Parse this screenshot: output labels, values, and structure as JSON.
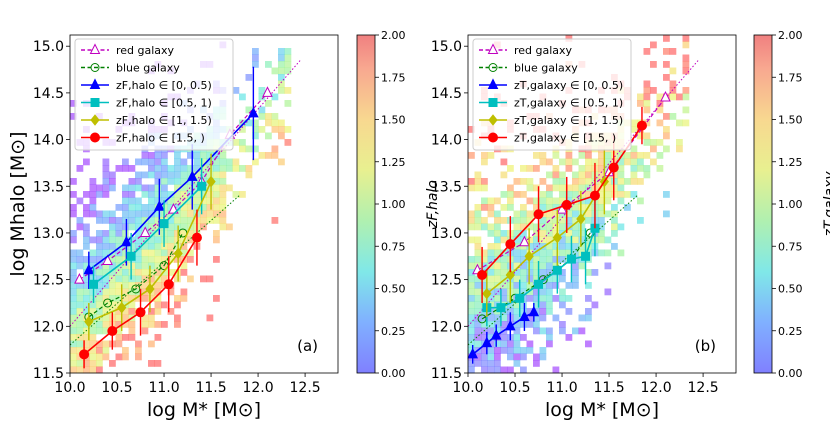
{
  "figure": {
    "colorbar": {
      "range": [
        0.0,
        2.0
      ],
      "tick_labels": [
        "0.00",
        "0.25",
        "0.50",
        "0.75",
        "1.00",
        "1.25",
        "1.50",
        "1.75",
        "2.00"
      ],
      "tick_values": [
        0.0,
        0.25,
        0.5,
        0.75,
        1.0,
        1.25,
        1.5,
        1.75,
        2.0
      ],
      "colormap": "rainbow (alpha 0.45)"
    },
    "colors": {
      "red_galaxy": "#c000c0",
      "blue_galaxy": "#008000",
      "bin1": "#0000ff",
      "bin2": "#00bfbf",
      "bin3": "#bfbf00",
      "bin4": "#ff0000"
    }
  },
  "chart_data": [
    {
      "type": "scatter",
      "panel_label": "(a)",
      "xlabel": "log M* [M⊙]",
      "ylabel": "log Mhalo [M⊙]",
      "colorbar_label": "zF,halo",
      "xlim": [
        10.0,
        12.85
      ],
      "ylim": [
        11.5,
        15.12
      ],
      "xticks": [
        10.0,
        10.5,
        11.0,
        11.5,
        12.0,
        12.5
      ],
      "xtick_labels": [
        "10.0",
        "10.5",
        "11.0",
        "11.5",
        "12.0",
        "12.5"
      ],
      "yticks": [
        11.5,
        12.0,
        12.5,
        13.0,
        13.5,
        14.0,
        14.5,
        15.0
      ],
      "ytick_labels": [
        "11.5",
        "12.0",
        "12.5",
        "13.0",
        "13.5",
        "14.0",
        "14.5",
        "15.0"
      ],
      "legend": {
        "location": "top-left",
        "entries": [
          {
            "label": "red galaxy",
            "series": "red"
          },
          {
            "label": "blue galaxy",
            "series": "blue"
          },
          {
            "label": "zF,halo ∈ [0, 0.5)",
            "series": "bin1"
          },
          {
            "label": "zF,halo ∈ [0.5, 1)",
            "series": "bin2"
          },
          {
            "label": "zF,halo ∈ [1, 1.5)",
            "series": "bin3"
          },
          {
            "label": "zF,halo ∈ [1.5, )",
            "series": "bin4"
          }
        ]
      },
      "fit_lines": {
        "red": {
          "x": [
            10.0,
            12.45
          ],
          "y": [
            12.0,
            14.85
          ]
        },
        "blue": {
          "x": [
            10.0,
            11.8
          ],
          "y": [
            11.8,
            13.4
          ]
        }
      },
      "series": [
        {
          "name": "red galaxy",
          "key": "red",
          "marker": "triangle-open",
          "x": [
            10.1,
            10.4,
            10.8,
            11.1,
            11.4,
            11.7,
            12.1
          ],
          "y": [
            12.5,
            12.7,
            13.0,
            13.25,
            13.55,
            14.05,
            14.5
          ],
          "err": [
            0,
            0,
            0,
            0,
            0,
            0,
            0
          ]
        },
        {
          "name": "blue galaxy",
          "key": "blue",
          "marker": "circle-open",
          "x": [
            10.2,
            10.4,
            10.7,
            11.0,
            11.2
          ],
          "y": [
            12.1,
            12.25,
            12.4,
            12.65,
            13.0
          ],
          "err": [
            0,
            0,
            0,
            0,
            0
          ]
        },
        {
          "name": "zF,halo ∈ [0, 0.5)",
          "key": "bin1",
          "marker": "triangle",
          "x": [
            10.2,
            10.6,
            10.95,
            11.3,
            11.95
          ],
          "y": [
            12.6,
            12.9,
            13.28,
            13.6,
            14.28
          ],
          "err": [
            0.2,
            0.25,
            0.3,
            0.35,
            0.5
          ]
        },
        {
          "name": "zF,halo ∈ [0.5, 1)",
          "key": "bin2",
          "marker": "square",
          "x": [
            10.25,
            10.65,
            11.0,
            11.4
          ],
          "y": [
            12.45,
            12.75,
            13.1,
            13.5
          ],
          "err": [
            0.2,
            0.25,
            0.25,
            0.3
          ]
        },
        {
          "name": "zF,halo ∈ [1, 1.5)",
          "key": "bin3",
          "marker": "diamond",
          "x": [
            10.2,
            10.55,
            10.85,
            11.15,
            11.5
          ],
          "y": [
            12.05,
            12.2,
            12.4,
            12.78,
            13.55
          ],
          "err": [
            0.2,
            0.25,
            0.25,
            0.3,
            0.3
          ]
        },
        {
          "name": "zF,halo ∈ [1.5, )",
          "key": "bin4",
          "marker": "circle",
          "x": [
            10.15,
            10.45,
            10.75,
            11.05,
            11.35
          ],
          "y": [
            11.7,
            11.95,
            12.15,
            12.45,
            12.95
          ],
          "err": [
            0.15,
            0.2,
            0.25,
            0.3,
            0.3
          ]
        }
      ]
    },
    {
      "type": "scatter",
      "panel_label": "(b)",
      "xlabel": "log M* [M⊙]",
      "ylabel": "",
      "colorbar_label": "zT,galaxy",
      "xlim": [
        10.0,
        12.85
      ],
      "ylim": [
        11.5,
        15.12
      ],
      "xticks": [
        10.0,
        10.5,
        11.0,
        11.5,
        12.0,
        12.5
      ],
      "xtick_labels": [
        "10.0",
        "10.5",
        "11.0",
        "11.5",
        "12.0",
        "12.5"
      ],
      "yticks": [
        11.5,
        12.0,
        12.5,
        13.0,
        13.5,
        14.0,
        14.5,
        15.0
      ],
      "ytick_labels": [
        "11.5",
        "12.0",
        "12.5",
        "13.0",
        "13.5",
        "14.0",
        "14.5",
        "15.0"
      ],
      "legend": {
        "location": "top-left",
        "entries": [
          {
            "label": "red galaxy",
            "series": "red"
          },
          {
            "label": "blue galaxy",
            "series": "blue"
          },
          {
            "label": "zT,galaxy ∈ [0, 0.5)",
            "series": "bin1"
          },
          {
            "label": "zT,galaxy ∈ [0.5, 1)",
            "series": "bin2"
          },
          {
            "label": "zT,galaxy ∈ [1, 1.5)",
            "series": "bin3"
          },
          {
            "label": "zT,galaxy ∈ [1.5, )",
            "series": "bin4"
          }
        ]
      },
      "fit_lines": {
        "red": {
          "x": [
            10.0,
            12.45
          ],
          "y": [
            12.0,
            14.85
          ]
        },
        "blue": {
          "x": [
            10.0,
            11.8
          ],
          "y": [
            11.8,
            13.4
          ]
        }
      },
      "series": [
        {
          "name": "red galaxy",
          "key": "red",
          "marker": "triangle-open",
          "x": [
            10.1,
            10.6,
            11.0,
            11.5,
            12.1
          ],
          "y": [
            12.6,
            12.9,
            13.25,
            13.65,
            14.45
          ],
          "err": [
            0,
            0,
            0,
            0,
            0
          ]
        },
        {
          "name": "blue galaxy",
          "key": "blue",
          "marker": "circle-open",
          "x": [
            10.15,
            10.5,
            10.8,
            11.1,
            11.3
          ],
          "y": [
            12.08,
            12.3,
            12.5,
            12.72,
            13.0
          ],
          "err": [
            0,
            0,
            0,
            0,
            0
          ]
        },
        {
          "name": "zT,galaxy ∈ [0, 0.5)",
          "key": "bin1",
          "marker": "triangle",
          "x": [
            10.05,
            10.2,
            10.3,
            10.45,
            10.6,
            10.7
          ],
          "y": [
            11.7,
            11.82,
            11.9,
            12.0,
            12.1,
            12.15
          ],
          "err": [
            0.1,
            0.12,
            0.12,
            0.15,
            0.15,
            0.1
          ]
        },
        {
          "name": "zT,galaxy ∈ [0.5, 1)",
          "key": "bin2",
          "marker": "square",
          "x": [
            10.2,
            10.35,
            10.55,
            10.75,
            10.95,
            11.1,
            11.25,
            11.35
          ],
          "y": [
            12.2,
            12.2,
            12.3,
            12.45,
            12.6,
            12.72,
            12.75,
            13.05
          ],
          "err": [
            0.2,
            0.2,
            0.2,
            0.25,
            0.25,
            0.25,
            0.3,
            0.3
          ]
        },
        {
          "name": "zT,galaxy ∈ [1, 1.5)",
          "key": "bin3",
          "marker": "diamond",
          "x": [
            10.2,
            10.45,
            10.65,
            10.95,
            11.2,
            11.45
          ],
          "y": [
            12.35,
            12.55,
            12.75,
            12.95,
            13.15,
            13.55
          ],
          "err": [
            0.25,
            0.3,
            0.3,
            0.3,
            0.3,
            0.35
          ]
        },
        {
          "name": "zT,galaxy ∈ [1.5, )",
          "key": "bin4",
          "marker": "circle",
          "x": [
            10.15,
            10.45,
            10.75,
            11.05,
            11.35,
            11.55,
            11.85
          ],
          "y": [
            12.55,
            12.88,
            13.2,
            13.3,
            13.4,
            13.7,
            14.15
          ],
          "err": [
            0.3,
            0.3,
            0.3,
            0.3,
            0.35,
            0.35,
            0.2
          ]
        }
      ]
    }
  ]
}
